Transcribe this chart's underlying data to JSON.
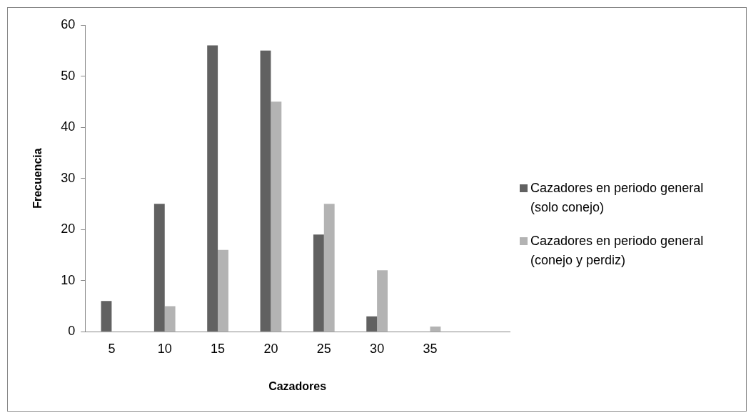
{
  "chart_data": {
    "type": "bar",
    "xlabel": "Cazadores",
    "ylabel": "Frecuencia",
    "categories": [
      "5",
      "10",
      "15",
      "20",
      "25",
      "30",
      "35",
      null
    ],
    "series": [
      {
        "name": "Cazadores en periodo general (solo conejo)",
        "color": "#616161",
        "values": [
          6,
          25,
          56,
          55,
          19,
          3,
          0,
          null
        ]
      },
      {
        "name": "Cazadores en periodo general (conejo y perdiz)",
        "color": "#b3b3b3",
        "values": [
          0,
          5,
          16,
          45,
          25,
          12,
          1,
          null
        ]
      }
    ],
    "ylim": [
      0,
      60
    ],
    "yticks": [
      0,
      10,
      20,
      30,
      40,
      50,
      60
    ],
    "grid": false,
    "legend": "right"
  }
}
